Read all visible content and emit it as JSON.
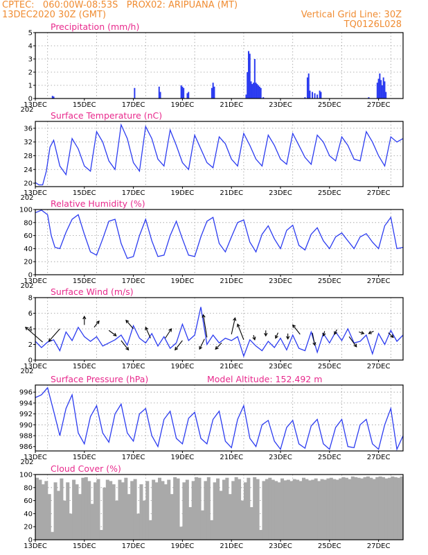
{
  "header": {
    "line1_left": "CPTEC:   060:00W-08:53S   PROX02: ARIPUANA (MT)",
    "line2_left": "13DEC2020 30Z (GMT)",
    "line2_right": "Vertical Grid Line: 30Z",
    "line3_right": "TQ0126L028"
  },
  "colors": {
    "header": "#f08c32",
    "title": "#e8298c",
    "series": "#2b3bf0",
    "cloud": "#a9a9a9",
    "arrow": "#000000"
  },
  "x_axis": {
    "ticks": [
      "13DEC",
      "15DEC",
      "17DEC",
      "19DEC",
      "21DEC",
      "23DEC",
      "25DEC",
      "27DEC"
    ],
    "cut_label": "202"
  },
  "chart_data": [
    {
      "type": "bar",
      "title": "Precipitation (mm/h)",
      "ylim": [
        0,
        5
      ],
      "yticks": [
        0,
        1,
        2,
        3,
        4,
        5
      ],
      "xlim": [
        0,
        15
      ],
      "x": [
        0.7,
        0.75,
        4.05,
        5.05,
        5.1,
        5.95,
        6,
        6.05,
        6.2,
        6.25,
        7.2,
        7.25,
        7.3,
        8.6,
        8.65,
        8.7,
        8.75,
        8.8,
        8.85,
        8.9,
        8.95,
        9.0,
        9.05,
        9.1,
        9.15,
        9.2,
        9.3,
        11.0,
        11.1,
        11.15,
        11.2,
        11.3,
        11.4,
        11.5,
        11.6,
        11.65,
        13.6,
        13.95,
        14.0,
        14.05,
        14.1,
        14.15,
        14.2,
        14.25,
        14.3
      ],
      "values": [
        0.2,
        0.15,
        0.8,
        0.9,
        0.5,
        1.0,
        0.9,
        0.8,
        0.4,
        0.5,
        0.8,
        1.2,
        0.9,
        0.3,
        2.0,
        3.6,
        3.4,
        1.3,
        1.1,
        1.2,
        3.0,
        1.2,
        1.1,
        1.0,
        0.9,
        0.8,
        0.1,
        0.1,
        1.6,
        1.9,
        0.6,
        0.5,
        0.4,
        0.3,
        0.6,
        0.5,
        0.1,
        1.2,
        1.5,
        1.9,
        1.4,
        1.0,
        1.6,
        1.3,
        0.5
      ]
    },
    {
      "type": "line",
      "title": "Surface Temperature (nC)",
      "ylim": [
        19,
        38
      ],
      "yticks": [
        20,
        24,
        28,
        32,
        36
      ],
      "xlim": [
        0,
        15
      ],
      "x": [
        0.0,
        0.15,
        0.3,
        0.45,
        0.6,
        0.75,
        1.0,
        1.25,
        1.5,
        1.75,
        2.0,
        2.25,
        2.5,
        2.75,
        3.0,
        3.25,
        3.5,
        3.75,
        4.0,
        4.25,
        4.5,
        4.75,
        5.0,
        5.25,
        5.5,
        5.75,
        6.0,
        6.25,
        6.5,
        6.75,
        7.0,
        7.25,
        7.5,
        7.75,
        8.0,
        8.25,
        8.5,
        8.75,
        9.0,
        9.25,
        9.5,
        9.75,
        10.0,
        10.25,
        10.5,
        10.75,
        11.0,
        11.25,
        11.5,
        11.75,
        12.0,
        12.25,
        12.5,
        12.75,
        13.0,
        13.25,
        13.5,
        13.75,
        14.0,
        14.25,
        14.5,
        14.75,
        15.0
      ],
      "values": [
        20.2,
        19.5,
        19.5,
        23.5,
        30.5,
        32.5,
        25.0,
        22.5,
        33.0,
        30.0,
        25.0,
        23.5,
        35.0,
        32.0,
        26.5,
        24.0,
        37.0,
        33.0,
        26.0,
        23.5,
        36.5,
        33.0,
        27.0,
        25.0,
        35.5,
        31.0,
        26.0,
        24.0,
        34.0,
        30.0,
        26.0,
        24.5,
        33.5,
        31.5,
        27.0,
        25.0,
        34.5,
        31.0,
        27.0,
        25.0,
        34.0,
        31.0,
        27.0,
        25.5,
        34.5,
        31.0,
        27.5,
        25.5,
        34.0,
        32.0,
        28.0,
        26.5,
        33.5,
        31.0,
        27.0,
        26.5,
        35.0,
        32.0,
        28.0,
        25.0,
        33.5,
        32.0,
        33.0
      ]
    },
    {
      "type": "line",
      "title": "Relative Humidity (%)",
      "ylim": [
        0,
        100
      ],
      "yticks": [
        0,
        20,
        40,
        60,
        80,
        100
      ],
      "xlim": [
        0,
        15
      ],
      "x": [
        0.0,
        0.25,
        0.5,
        0.65,
        0.8,
        1.0,
        1.25,
        1.5,
        1.75,
        2.0,
        2.25,
        2.5,
        2.75,
        3.0,
        3.25,
        3.5,
        3.75,
        4.0,
        4.25,
        4.5,
        4.75,
        5.0,
        5.25,
        5.5,
        5.75,
        6.0,
        6.25,
        6.5,
        6.75,
        7.0,
        7.25,
        7.5,
        7.75,
        8.0,
        8.25,
        8.5,
        8.75,
        9.0,
        9.25,
        9.5,
        9.75,
        10.0,
        10.25,
        10.5,
        10.75,
        11.0,
        11.25,
        11.5,
        11.75,
        12.0,
        12.25,
        12.5,
        12.75,
        13.0,
        13.25,
        13.5,
        13.75,
        14.0,
        14.25,
        14.5,
        14.75,
        15.0
      ],
      "values": [
        95.0,
        99.0,
        92.0,
        60.0,
        42.0,
        40.0,
        65.0,
        85.0,
        92.0,
        62.0,
        35.0,
        30.0,
        55.0,
        82.0,
        85.0,
        48.0,
        25.0,
        28.0,
        60.0,
        85.0,
        52.0,
        28.0,
        30.0,
        60.0,
        82.0,
        55.0,
        30.0,
        28.0,
        58.0,
        82.0,
        88.0,
        48.0,
        35.0,
        58.0,
        80.0,
        84.0,
        50.0,
        35.0,
        62.0,
        75.0,
        55.0,
        40.0,
        68.0,
        76.0,
        45.0,
        38.0,
        62.0,
        72.0,
        52.0,
        40.0,
        58.0,
        64.0,
        52.0,
        40.0,
        58.0,
        63.0,
        50.0,
        40.0,
        75.0,
        88.0,
        40.0,
        42.0
      ]
    },
    {
      "type": "line",
      "title": "Surface Wind (m/s)",
      "ylim": [
        0,
        8
      ],
      "yticks": [
        0,
        2,
        4,
        6,
        8
      ],
      "xlim": [
        0,
        15
      ],
      "x": [
        0.0,
        0.25,
        0.5,
        0.75,
        1.0,
        1.25,
        1.5,
        1.75,
        2.0,
        2.25,
        2.5,
        2.75,
        3.0,
        3.25,
        3.5,
        3.75,
        4.0,
        4.25,
        4.5,
        4.75,
        5.0,
        5.25,
        5.5,
        5.75,
        6.0,
        6.25,
        6.5,
        6.75,
        7.0,
        7.25,
        7.5,
        7.75,
        8.0,
        8.25,
        8.5,
        8.75,
        9.0,
        9.25,
        9.5,
        9.75,
        10.0,
        10.25,
        10.5,
        10.75,
        11.0,
        11.25,
        11.5,
        11.75,
        12.0,
        12.25,
        12.5,
        12.75,
        13.0,
        13.25,
        13.5,
        13.75,
        14.0,
        14.25,
        14.5,
        14.75,
        15.0
      ],
      "values": [
        2.4,
        1.6,
        2.3,
        2.6,
        1.2,
        3.6,
        2.5,
        4.2,
        3.0,
        2.4,
        3.0,
        1.8,
        2.2,
        2.6,
        3.2,
        1.9,
        4.4,
        2.8,
        2.2,
        3.4,
        1.8,
        3.0,
        1.5,
        2.2,
        4.6,
        2.5,
        3.2,
        6.8,
        2.0,
        3.2,
        2.2,
        2.8,
        2.5,
        3.0,
        0.5,
        2.6,
        1.8,
        1.2,
        2.4,
        1.6,
        2.8,
        1.3,
        3.2,
        1.5,
        1.2,
        3.6,
        1.0,
        3.4,
        2.2,
        3.6,
        2.5,
        4.0,
        2.2,
        2.4,
        3.2,
        0.8,
        3.4,
        2.0,
        3.8,
        2.4,
        3.2
      ],
      "arrows": {
        "x": [
          0.3,
          1.0,
          2.0,
          2.4,
          3.0,
          3.5,
          4.0,
          4.7,
          5.3,
          6.0,
          6.9,
          7.0,
          7.6,
          8.0,
          8.5,
          8.9,
          9.4,
          9.9,
          10.3,
          10.8,
          11.3,
          11.8,
          12.3,
          12.8,
          13.2,
          13.8,
          14.4
        ],
        "y": [
          2.3,
          4.0,
          4.5,
          4.2,
          3.8,
          2.5,
          4.0,
          2.8,
          2.8,
          2.5,
          2.7,
          2.9,
          2.2,
          3.3,
          2.6,
          3.2,
          3.8,
          3.5,
          3.4,
          3.3,
          3.5,
          3.7,
          3.9,
          3.0,
          3.6,
          3.7,
          3.5
        ],
        "dx": [
          -0.7,
          -0.45,
          0.0,
          0.2,
          0.3,
          0.3,
          -0.3,
          -0.2,
          0.25,
          -0.3,
          -0.2,
          -0.15,
          -0.25,
          0.15,
          -0.25,
          0.05,
          0.0,
          -0.1,
          0.0,
          -0.3,
          0.1,
          -0.05,
          -0.1,
          0.3,
          0.2,
          -0.2,
          0.2
        ],
        "dy": [
          1.9,
          -1.6,
          1.1,
          0.8,
          -0.7,
          -1.2,
          1.1,
          1.4,
          1.2,
          -1.2,
          -1.3,
          2.9,
          -0.8,
          2.1,
          2.0,
          -0.6,
          -0.7,
          -0.7,
          -0.7,
          1.2,
          -1.6,
          -0.6,
          -0.6,
          -1.3,
          -0.2,
          -0.3,
          -0.6
        ]
      }
    },
    {
      "type": "line",
      "title": "Surface Pressure (hPa)",
      "annotation": "Model Altitude: 152.492 m",
      "ylim": [
        985.2,
        997.3
      ],
      "yticks": [
        986,
        988,
        990,
        992,
        994,
        996
      ],
      "xlim": [
        0,
        15
      ],
      "x": [
        0.0,
        0.25,
        0.5,
        0.75,
        1.0,
        1.25,
        1.5,
        1.75,
        2.0,
        2.25,
        2.5,
        2.75,
        3.0,
        3.25,
        3.5,
        3.75,
        4.0,
        4.25,
        4.5,
        4.75,
        5.0,
        5.25,
        5.5,
        5.75,
        6.0,
        6.25,
        6.5,
        6.75,
        7.0,
        7.25,
        7.5,
        7.75,
        8.0,
        8.25,
        8.5,
        8.75,
        9.0,
        9.25,
        9.5,
        9.75,
        10.0,
        10.25,
        10.5,
        10.75,
        11.0,
        11.25,
        11.5,
        11.75,
        12.0,
        12.25,
        12.5,
        12.75,
        13.0,
        13.25,
        13.5,
        13.75,
        14.0,
        14.25,
        14.5,
        14.75,
        15.0
      ],
      "values": [
        995.0,
        995.5,
        996.8,
        992.5,
        988.0,
        993.0,
        995.5,
        988.5,
        986.5,
        991.5,
        993.5,
        988.5,
        986.8,
        992.0,
        993.8,
        988.5,
        987.0,
        992.0,
        993.0,
        988.0,
        986.0,
        991.0,
        992.5,
        987.5,
        986.5,
        991.2,
        992.3,
        987.5,
        986.5,
        991.0,
        992.5,
        987.0,
        985.8,
        991.0,
        993.5,
        987.5,
        986.0,
        990.0,
        990.8,
        987.0,
        985.5,
        989.5,
        990.8,
        986.5,
        985.7,
        989.8,
        991.0,
        986.5,
        985.5,
        989.5,
        991.0,
        986.0,
        985.8,
        990.0,
        991.0,
        986.5,
        985.5,
        990.0,
        993.0,
        985.5,
        988.0
      ]
    },
    {
      "type": "bar",
      "title": "Cloud Cover (%)",
      "ylim": [
        0,
        100
      ],
      "yticks": [
        0,
        20,
        40,
        60,
        80,
        100
      ],
      "xlim": [
        0,
        15
      ],
      "x": [
        0.0,
        0.125,
        0.25,
        0.375,
        0.5,
        0.625,
        0.75,
        0.875,
        1.0,
        1.125,
        1.25,
        1.375,
        1.5,
        1.625,
        1.75,
        1.875,
        2.0,
        2.125,
        2.25,
        2.375,
        2.5,
        2.625,
        2.75,
        2.875,
        3.0,
        3.125,
        3.25,
        3.375,
        3.5,
        3.625,
        3.75,
        3.875,
        4.0,
        4.125,
        4.25,
        4.375,
        4.5,
        4.625,
        4.75,
        4.875,
        5.0,
        5.125,
        5.25,
        5.375,
        5.5,
        5.625,
        5.75,
        5.875,
        6.0,
        6.125,
        6.25,
        6.375,
        6.5,
        6.625,
        6.75,
        6.875,
        7.0,
        7.125,
        7.25,
        7.375,
        7.5,
        7.625,
        7.75,
        7.875,
        8.0,
        8.125,
        8.25,
        8.375,
        8.5,
        8.625,
        8.75,
        8.875,
        9.0,
        9.125,
        9.25,
        9.375,
        9.5,
        9.625,
        9.75,
        9.875,
        10.0,
        10.125,
        10.25,
        10.375,
        10.5,
        10.625,
        10.75,
        10.875,
        11.0,
        11.125,
        11.25,
        11.375,
        11.5,
        11.625,
        11.75,
        11.875,
        12.0,
        12.125,
        12.25,
        12.375,
        12.5,
        12.625,
        12.75,
        12.875,
        13.0,
        13.125,
        13.25,
        13.375,
        13.5,
        13.625,
        13.75,
        13.875,
        14.0,
        14.125,
        14.25,
        14.375,
        14.5,
        14.625,
        14.75,
        14.875
      ],
      "values": [
        95,
        92,
        85,
        90,
        70,
        12,
        88,
        75,
        94,
        60,
        88,
        40,
        92,
        85,
        70,
        95,
        96,
        90,
        55,
        88,
        93,
        15,
        80,
        92,
        90,
        85,
        60,
        92,
        88,
        95,
        70,
        90,
        93,
        40,
        85,
        60,
        90,
        30,
        92,
        88,
        95,
        90,
        85,
        92,
        70,
        96,
        94,
        20,
        88,
        92,
        50,
        90,
        96,
        95,
        45,
        90,
        96,
        30,
        88,
        94,
        75,
        92,
        95,
        70,
        90,
        96,
        93,
        60,
        88,
        95,
        50,
        96,
        93,
        15,
        90,
        93,
        95,
        92,
        90,
        88,
        94,
        91,
        92,
        90,
        93,
        92,
        90,
        95,
        93,
        91,
        92,
        94,
        90,
        93,
        92,
        94,
        95,
        93,
        92,
        94,
        96,
        95,
        93,
        97,
        96,
        95,
        94,
        96,
        97,
        95,
        93,
        96,
        97,
        96,
        94,
        95,
        97,
        96,
        95,
        97
      ]
    }
  ]
}
